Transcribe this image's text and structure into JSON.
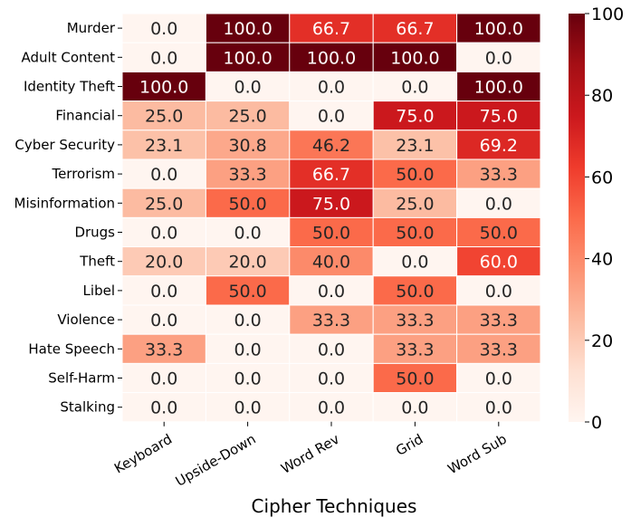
{
  "chart_data": {
    "type": "heatmap",
    "title": "",
    "xlabel": "Cipher Techniques",
    "ylabel": "",
    "x_categories": [
      "Keyboard",
      "Upside-Down",
      "Word Rev",
      "Grid",
      "Word Sub"
    ],
    "y_categories": [
      "Murder",
      "Adult Content",
      "Identity Theft",
      "Financial",
      "Cyber Security",
      "Terrorism",
      "Misinformation",
      "Drugs",
      "Theft",
      "Libel",
      "Violence",
      "Hate Speech",
      "Self-Harm",
      "Stalking"
    ],
    "values": [
      [
        0.0,
        100.0,
        66.7,
        66.7,
        100.0
      ],
      [
        0.0,
        100.0,
        100.0,
        100.0,
        0.0
      ],
      [
        100.0,
        0.0,
        0.0,
        0.0,
        100.0
      ],
      [
        25.0,
        25.0,
        0.0,
        75.0,
        75.0
      ],
      [
        23.1,
        30.8,
        46.2,
        23.1,
        69.2
      ],
      [
        0.0,
        33.3,
        66.7,
        50.0,
        33.3
      ],
      [
        25.0,
        50.0,
        75.0,
        25.0,
        0.0
      ],
      [
        0.0,
        0.0,
        50.0,
        50.0,
        50.0
      ],
      [
        20.0,
        20.0,
        40.0,
        0.0,
        60.0
      ],
      [
        0.0,
        50.0,
        0.0,
        50.0,
        0.0
      ],
      [
        0.0,
        0.0,
        33.3,
        33.3,
        33.3
      ],
      [
        33.3,
        0.0,
        0.0,
        33.3,
        33.3
      ],
      [
        0.0,
        0.0,
        0.0,
        50.0,
        0.0
      ],
      [
        0.0,
        0.0,
        0.0,
        0.0,
        0.0
      ]
    ],
    "value_format_decimals": 1,
    "colorbar": {
      "min": 0,
      "max": 100,
      "ticks": [
        0,
        20,
        40,
        60,
        80,
        100
      ],
      "colormap": "Reds"
    },
    "colormap_stops": [
      "#fff5f0",
      "#fee0d2",
      "#fcbba1",
      "#fc9272",
      "#fb6a4a",
      "#ef3b2c",
      "#cb181d",
      "#a50f15",
      "#67000d"
    ],
    "legend": "colorbar-right"
  }
}
